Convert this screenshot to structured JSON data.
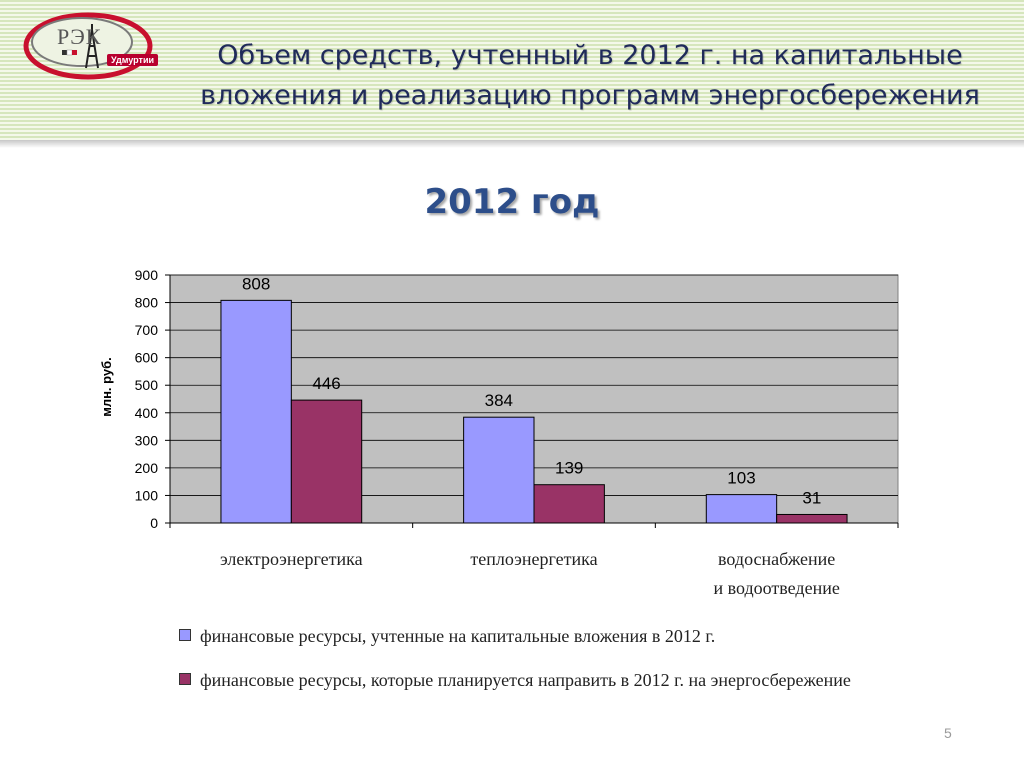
{
  "header": {
    "logo": {
      "text": "РЭК",
      "subtitle": "Удмуртии"
    },
    "title": "Объем средств, учтенный в 2012 г. на капитальные вложения и реализацию программ  энергосбережения"
  },
  "colors": {
    "series_1": "#9999ff",
    "series_2": "#993366",
    "plot_background": "#c0c0c0",
    "title": "#1f2a5a",
    "heading": "#2d4e8a"
  },
  "chart_data": {
    "type": "bar",
    "title": "2012 год",
    "ylabel": "млн. руб.",
    "xlabel": "",
    "ylim": [
      0,
      900
    ],
    "yticks": [
      0,
      100,
      200,
      300,
      400,
      500,
      600,
      700,
      800,
      900
    ],
    "grid": true,
    "legend_position": "bottom",
    "categories": [
      "электроэнергетика",
      "теплоэнергетика",
      "водоснабжение и водоотведение"
    ],
    "category_lines": [
      [
        "электроэнергетика"
      ],
      [
        "теплоэнергетика"
      ],
      [
        "водоснабжение",
        "и водоотведение"
      ]
    ],
    "series": [
      {
        "name": "финансовые ресурсы, учтенные на капитальные вложения в 2012 г.",
        "values": [
          808,
          384,
          103
        ]
      },
      {
        "name": "финансовые ресурсы, которые планируется направить в 2012 г. на энергосбережение",
        "values": [
          446,
          139,
          31
        ]
      }
    ]
  },
  "page_number": "5"
}
